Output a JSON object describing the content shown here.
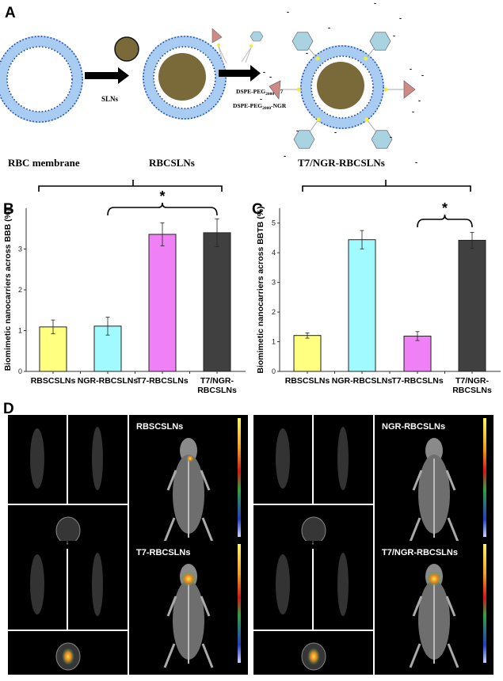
{
  "panel_a": {
    "letter": "A",
    "step1_label": "SLNs",
    "step2_label_1": "DSPE-PEG",
    "step2_sub_1": "2000",
    "step2_suffix_1": "-T7",
    "step2_label_2": "DSPE-PEG",
    "step2_sub_2": "2000",
    "step2_suffix_2": "-NGR",
    "stage_labels": [
      "RBC membrane",
      "RBCSLNs",
      "T7/NGR-RBCSLNs"
    ],
    "charge_symbol": "-",
    "colors": {
      "membrane": "#a9cdf2",
      "membrane_dots": "#1d3f8f",
      "core": "#7a6a3a",
      "t7_ligand": "#cf8a88",
      "ngr_ligand": "#a9d3e0",
      "linker": "#f2ec3c"
    }
  },
  "chart_data": [
    {
      "letter": "B",
      "type": "bar",
      "categories": [
        "RBSCSLNs",
        "NGR-RBCSLNs",
        "T7-RBCSLNs",
        "T7/NGR-RBCSLNs"
      ],
      "values": [
        1.09,
        1.11,
        3.36,
        3.4
      ],
      "errors": [
        0.17,
        0.22,
        0.28,
        0.34
      ],
      "colors": [
        "#ffff80",
        "#a0faff",
        "#f080f5",
        "#404040"
      ],
      "xlabel": "",
      "ylabel": "Biomimetic nanocarriers across BBB (%)",
      "ylim": [
        0,
        4
      ],
      "yticks": [
        0,
        1,
        2,
        3
      ],
      "grid": false,
      "significance": {
        "between": [
          "NGR-RBCSLNs",
          "T7/NGR-RBCSLNs"
        ],
        "mark": "*"
      }
    },
    {
      "letter": "C",
      "type": "bar",
      "categories": [
        "RBSCSLNs",
        "NGR-RBCSLNs",
        "T7-RBCSLNs",
        "T7/NGR-RBCSLNs"
      ],
      "values": [
        1.21,
        4.44,
        1.19,
        4.42
      ],
      "errors": [
        0.09,
        0.31,
        0.15,
        0.27
      ],
      "colors": [
        "#ffff80",
        "#a0faff",
        "#f080f5",
        "#404040"
      ],
      "xlabel": "",
      "ylabel": "Biomimetic nanocarriers across BBTB (%)",
      "ylim": [
        0,
        5.5
      ],
      "yticks": [
        0,
        1,
        2,
        3,
        4,
        5
      ],
      "grid": false,
      "significance": {
        "between": [
          "T7-RBCSLNs",
          "T7/NGR-RBCSLNs"
        ],
        "mark": "*"
      }
    }
  ],
  "panel_d": {
    "letter": "D",
    "imaging_panels": [
      {
        "label": "RBSCSLNs",
        "hotspot": "low"
      },
      {
        "label": "NGR-RBCSLNs",
        "hotspot": "none"
      },
      {
        "label": "T7-RBCSLNs",
        "hotspot": "high"
      },
      {
        "label": "T7/NGR-RBCSLNs",
        "hotspot": "high"
      }
    ],
    "colorbar_colors": [
      "#fff36a",
      "#f0a020",
      "#d01818",
      "#30a040",
      "#2040c0",
      "#b0b0ff"
    ]
  }
}
